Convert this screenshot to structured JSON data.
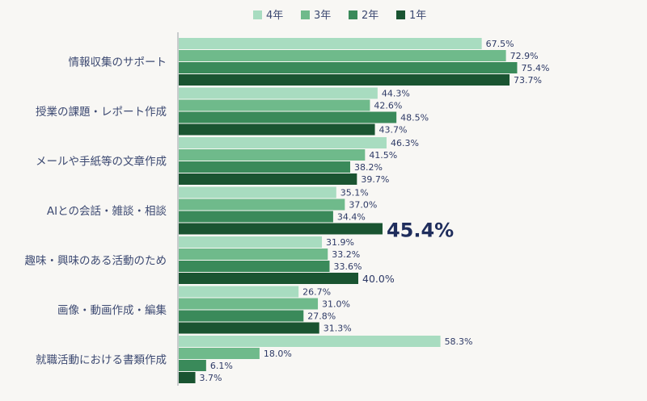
{
  "chart_data": {
    "type": "bar",
    "orientation": "horizontal",
    "categories": [
      "情報収集のサポート",
      "授業の課題・レポート作成",
      "メールや手紙等の文章作成",
      "AIとの会話・雑談・相談",
      "趣味・興味のある活動のため",
      "画像・動画作成・編集",
      "就職活動における書類作成"
    ],
    "series": [
      {
        "name": "4年",
        "color": "#a8dcc0",
        "values": [
          67.5,
          44.3,
          46.3,
          35.1,
          31.9,
          26.7,
          58.3
        ]
      },
      {
        "name": "3年",
        "color": "#6fba8b",
        "values": [
          72.9,
          42.6,
          41.5,
          37.0,
          33.2,
          31.0,
          18.0
        ]
      },
      {
        "name": "2年",
        "color": "#3a8a5a",
        "values": [
          75.4,
          48.5,
          38.2,
          34.4,
          33.6,
          27.8,
          6.1
        ]
      },
      {
        "name": "1年",
        "color": "#1a5431",
        "values": [
          73.7,
          43.7,
          39.7,
          45.4,
          40.0,
          31.3,
          3.7
        ]
      }
    ],
    "value_suffix": "%",
    "highlights": [
      {
        "category_index": 3,
        "series_index": 3,
        "style": "large"
      },
      {
        "category_index": 4,
        "series_index": 3,
        "style": "medium"
      }
    ],
    "xlim": [
      0,
      100
    ],
    "legend_position": "top-center",
    "grid": false,
    "colors": {
      "label_text": "#3d4a72",
      "value_text": "#2e3a66",
      "highlight_text": "#1f2d5c",
      "axis_line": "#9aa0a6",
      "background": "#f8f7f4"
    }
  }
}
